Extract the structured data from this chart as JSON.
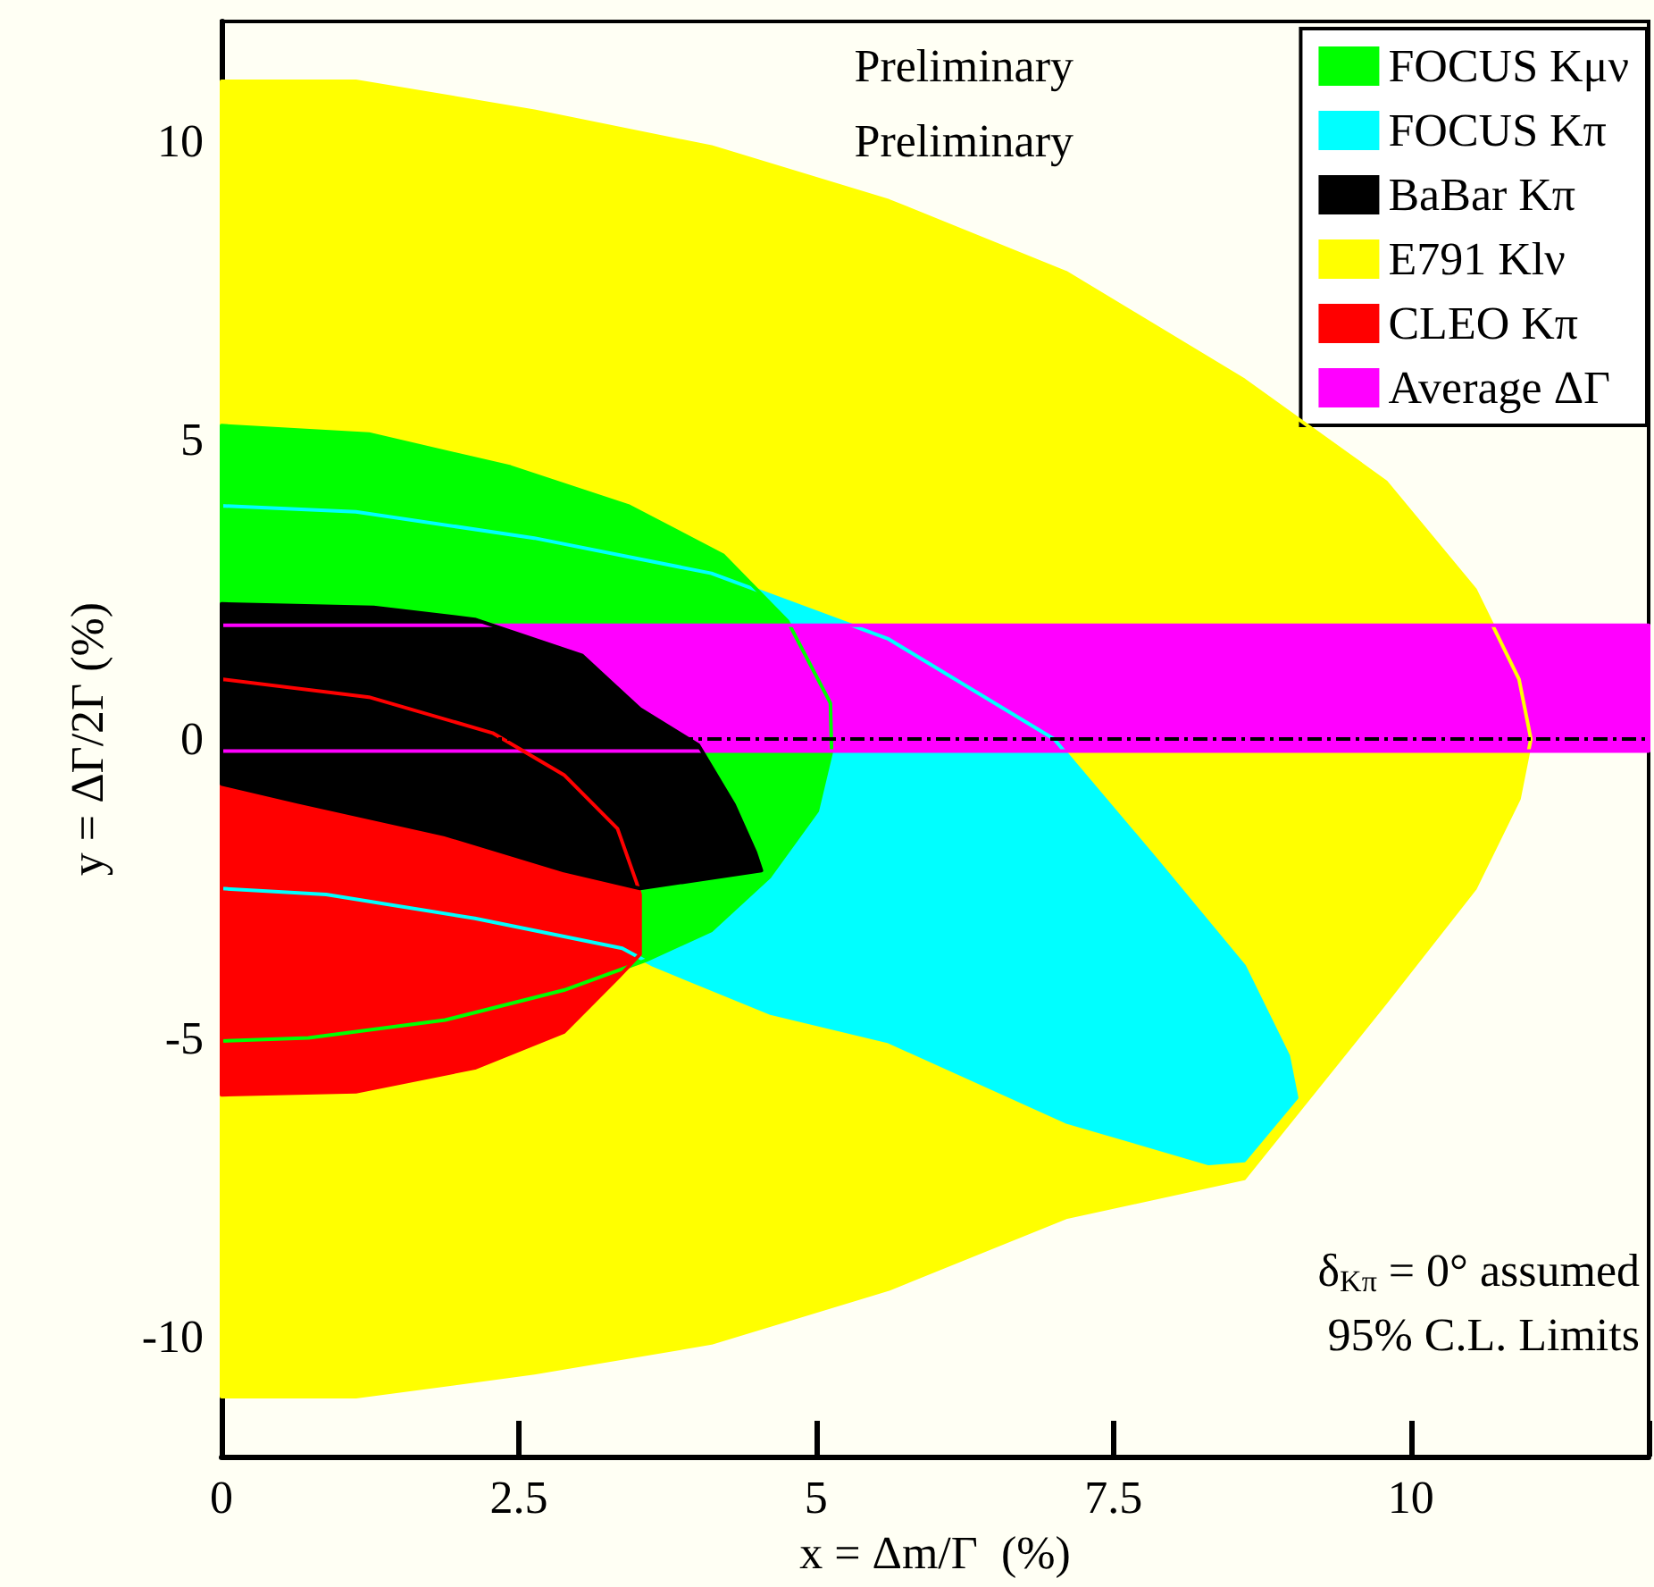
{
  "chart_data": {
    "type": "area",
    "xlabel": "x = Δm/Γ  (%)",
    "ylabel": "y = ΔΓ/2Γ (%)",
    "xlim": [
      0,
      12
    ],
    "ylim": [
      -12,
      12
    ],
    "xticks": [
      0,
      2.5,
      5,
      7.5,
      10
    ],
    "yticks": [
      -10,
      -5,
      0,
      5,
      10
    ],
    "grid": false,
    "legend": "top right",
    "annotations": [
      "Preliminary",
      "Preliminary",
      "δ$_{Kπ}$ = 0° assumed",
      "95% C.L. Limits"
    ],
    "ref_lines": [
      {
        "axis": "y",
        "value": 0,
        "color": "#000000",
        "line_style": "dashed"
      }
    ],
    "series": [
      {
        "name": "FOCUS Kμν",
        "color": "#00ff00",
        "x": [
          0,
          1.24,
          2.43,
          3.42,
          4.22,
          4.76,
          5.12,
          5.13,
          5.01,
          4.61,
          4.12,
          3.57,
          2.88,
          1.88,
          0.73,
          0
        ],
        "values": [
          5.24,
          5.1,
          4.55,
          3.9,
          3.07,
          1.97,
          0.6,
          -0.2,
          -1.2,
          -2.3,
          -3.2,
          -3.7,
          -4.2,
          -4.7,
          -5.0,
          -5.05
        ]
      },
      {
        "name": "FOCUS Kπ",
        "color": "#00ffff",
        "x": [
          0,
          1.13,
          2.63,
          4.12,
          5.61,
          7.0,
          7.85,
          8.6,
          8.97,
          9.04,
          8.6,
          8.3,
          7.1,
          5.61,
          4.61,
          3.63,
          3.37,
          2.13,
          0.88,
          0
        ],
        "values": [
          3.9,
          3.8,
          3.36,
          2.77,
          1.67,
          0,
          -2.0,
          -3.8,
          -5.3,
          -6.0,
          -7.05,
          -7.1,
          -6.4,
          -5.06,
          -4.58,
          -3.78,
          -3.5,
          -3.0,
          -2.6,
          -2.5
        ]
      },
      {
        "name": "BaBar Kπ",
        "color": "#000000",
        "x": [
          0,
          1.28,
          2.13,
          3.03,
          3.52,
          4.01,
          4.31,
          4.49,
          4.54,
          3.52,
          2.88,
          1.88,
          0.64,
          0
        ],
        "values": [
          2.26,
          2.2,
          2.0,
          1.4,
          0.5,
          -0.1,
          -1.1,
          -1.9,
          -2.2,
          -2.5,
          -2.2,
          -1.6,
          -1.05,
          -0.75
        ]
      },
      {
        "name": "E791 Klν",
        "color": "#ffff00",
        "x": [
          0,
          1.13,
          2.63,
          4.12,
          5.61,
          7.1,
          8.6,
          9.79,
          10.54,
          10.91,
          11.01,
          10.91,
          10.54,
          9.79,
          8.6,
          7.1,
          5.61,
          4.12,
          2.63,
          1.13,
          0
        ],
        "values": [
          11.0,
          11.0,
          10.5,
          9.9,
          9.0,
          7.8,
          6.0,
          4.3,
          2.5,
          1.0,
          0,
          -1.0,
          -2.5,
          -4.4,
          -7.35,
          -8.0,
          -9.2,
          -10.1,
          -10.6,
          -11.0,
          -11.0
        ]
      },
      {
        "name": "CLEO Kπ",
        "color": "#ff0000",
        "x": [
          0,
          1.24,
          2.28,
          2.88,
          3.33,
          3.49,
          3.52,
          3.52,
          3.33,
          2.88,
          2.13,
          1.13,
          0
        ],
        "values": [
          1.0,
          0.7,
          0.1,
          -0.6,
          -1.5,
          -2.4,
          -2.6,
          -3.6,
          -4.0,
          -4.9,
          -5.5,
          -5.9,
          -5.95
        ]
      },
      {
        "name": "Average ΔΓ",
        "color": "#ff00ff",
        "x": [
          0,
          12,
          12,
          0
        ],
        "values": [
          1.9,
          1.9,
          -0.2,
          -0.2
        ]
      }
    ]
  }
}
